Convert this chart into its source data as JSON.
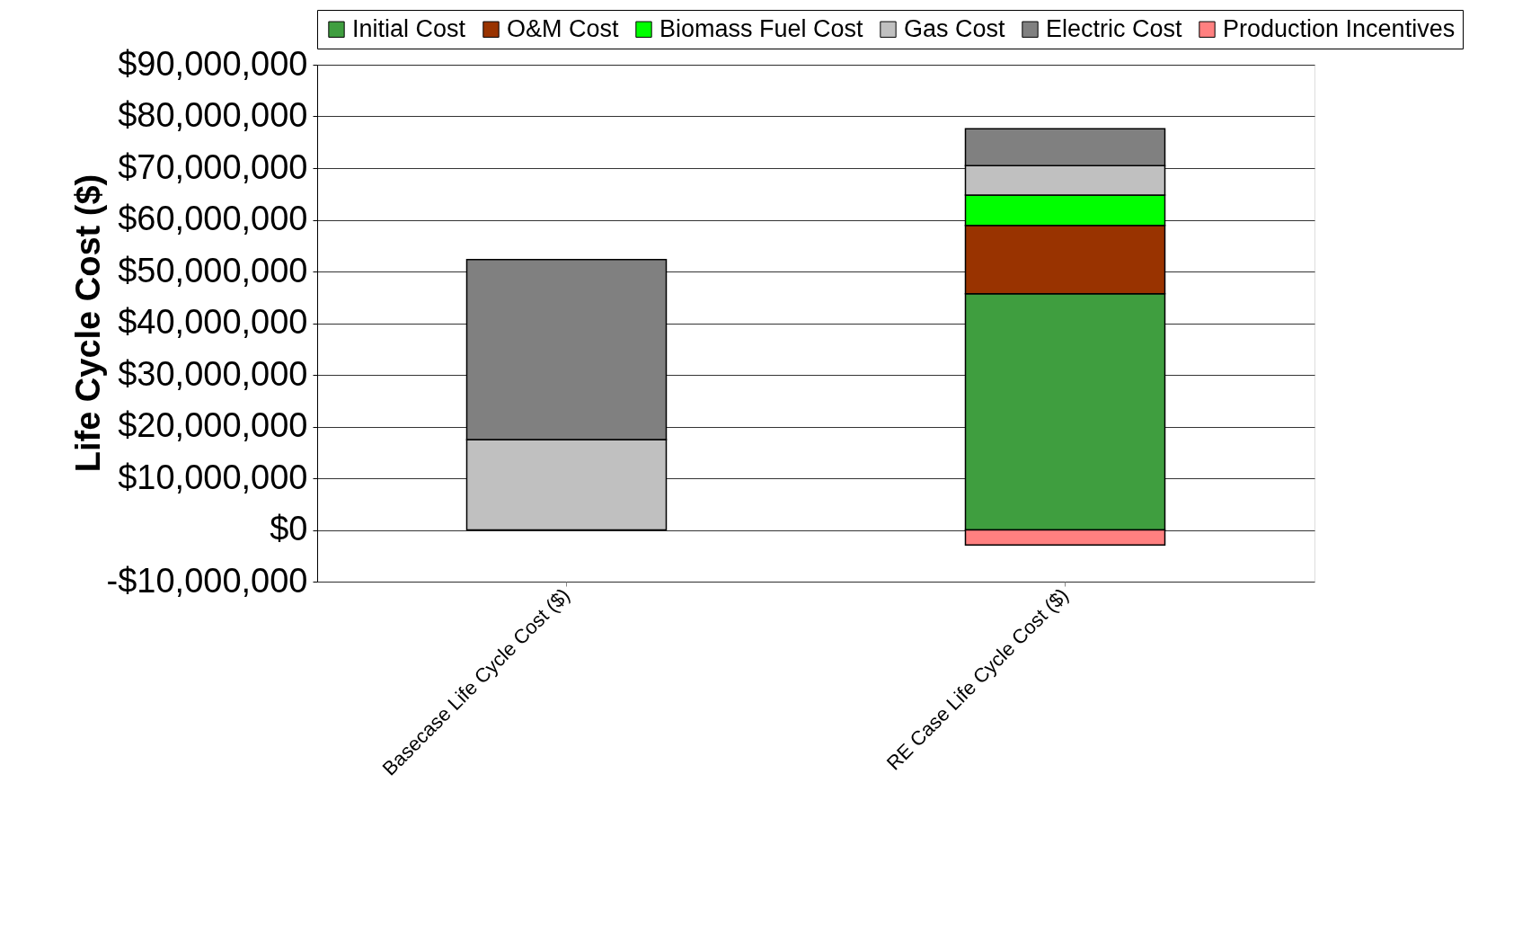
{
  "chart_data": {
    "type": "bar",
    "stacked": true,
    "ylabel": "Life Cycle Cost ($)",
    "categories": [
      "Basecase Life Cycle Cost ($)",
      "RE Case Life Cycle Cost ($)"
    ],
    "series": [
      {
        "name": "Initial Cost",
        "color": "#3f9e3f",
        "values": [
          null,
          45700000
        ]
      },
      {
        "name": "O&M Cost",
        "color": "#993300",
        "values": [
          null,
          13200000
        ]
      },
      {
        "name": "Biomass Fuel Cost",
        "color": "#00ff00",
        "values": [
          null,
          5900000
        ]
      },
      {
        "name": "Gas Cost",
        "color": "#c0c0c0",
        "values": [
          17500000,
          5700000
        ]
      },
      {
        "name": "Electric Cost",
        "color": "#808080",
        "values": [
          34800000,
          7100000
        ]
      },
      {
        "name": "Production Incentives",
        "color": "#ff8080",
        "values": [
          null,
          -2900000
        ]
      }
    ],
    "ylim": [
      -10000000,
      90000000
    ],
    "yticks": [
      {
        "value": -10000000,
        "label": "-$10,000,000"
      },
      {
        "value": 0,
        "label": "$0"
      },
      {
        "value": 10000000,
        "label": "$10,000,000"
      },
      {
        "value": 20000000,
        "label": "$20,000,000"
      },
      {
        "value": 30000000,
        "label": "$30,000,000"
      },
      {
        "value": 40000000,
        "label": "$40,000,000"
      },
      {
        "value": 50000000,
        "label": "$50,000,000"
      },
      {
        "value": 60000000,
        "label": "$60,000,000"
      },
      {
        "value": 70000000,
        "label": "$70,000,000"
      },
      {
        "value": 80000000,
        "label": "$80,000,000"
      },
      {
        "value": 90000000,
        "label": "$90,000,000"
      }
    ],
    "grid": "y",
    "legend": "top"
  }
}
